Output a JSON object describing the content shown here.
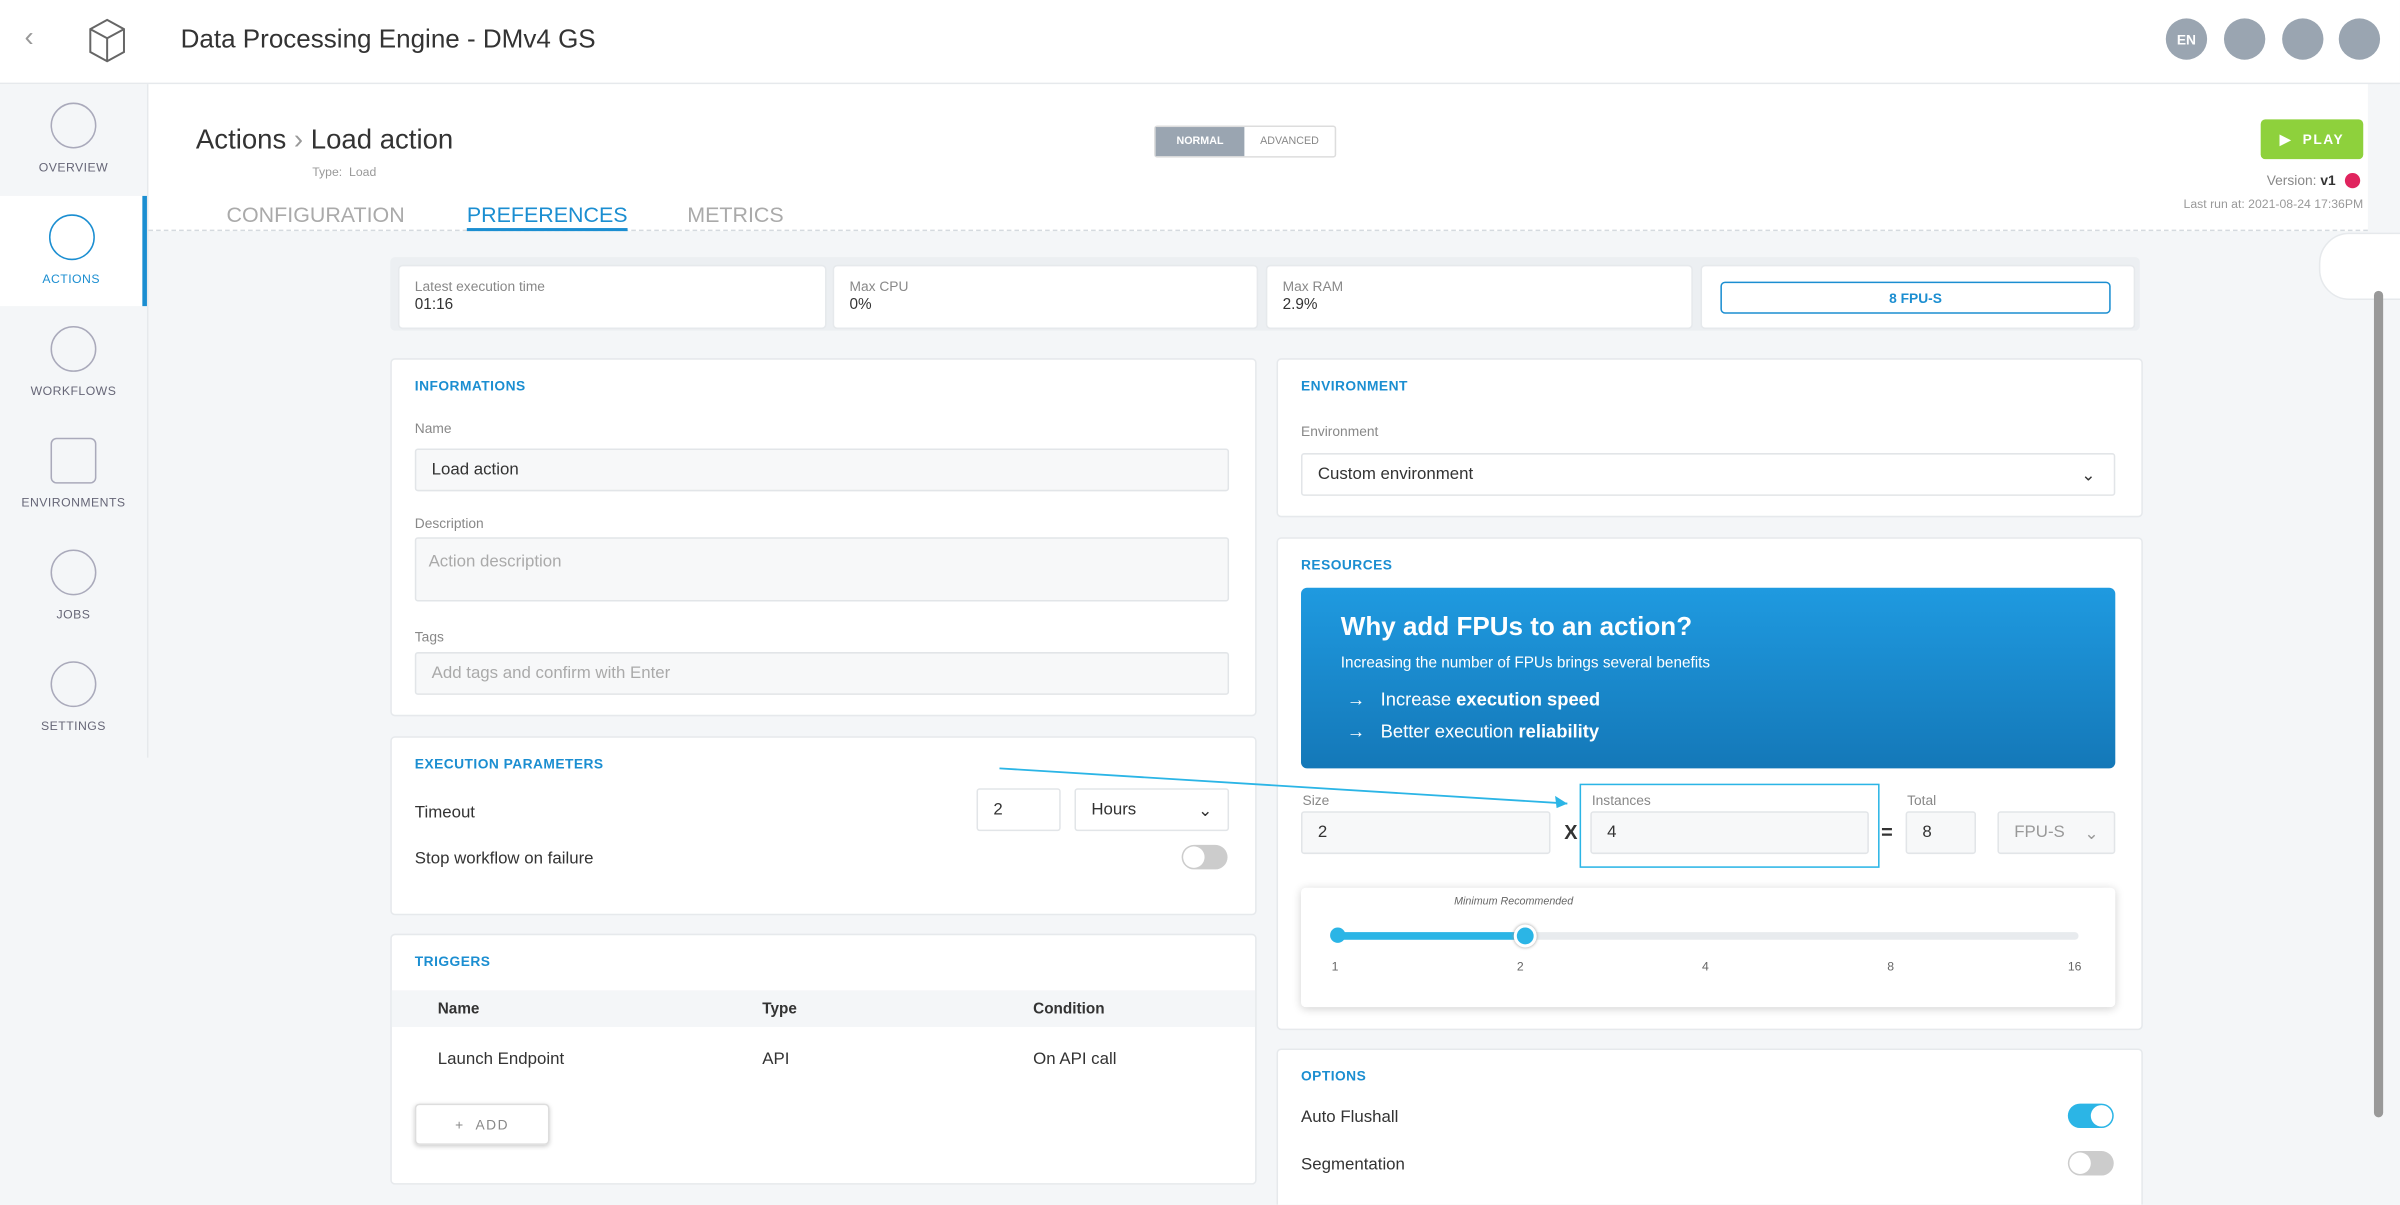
{
  "header": {
    "title": "Data Processing Engine - DMv4 GS",
    "language": "EN"
  },
  "sidebar": {
    "items": [
      "OVERVIEW",
      "ACTIONS",
      "WORKFLOWS",
      "ENVIRONMENTS",
      "JOBS",
      "SETTINGS"
    ]
  },
  "page": {
    "breadcrumb": [
      "Actions",
      "Load action"
    ],
    "type_label": "Type:",
    "type": "Load",
    "modes": [
      "NORMAL",
      "ADVANCED"
    ],
    "play": "PLAY",
    "version_label": "Version:",
    "version": "v1",
    "last_run": "Last run at: 2021-08-24 17:36PM",
    "tabs": [
      "CONFIGURATION",
      "PREFERENCES",
      "METRICS"
    ]
  },
  "stats": [
    {
      "label": "Latest execution time",
      "value": "01:16"
    },
    {
      "label": "Max CPU",
      "value": "0%"
    },
    {
      "label": "Max RAM",
      "value": "2.9%"
    }
  ],
  "fpu_button": "8 FPU-S",
  "informations": {
    "title": "INFORMATIONS",
    "name_label": "Name",
    "name": "Load action",
    "description_label": "Description",
    "description_placeholder": "Action description",
    "tags_label": "Tags",
    "tags_placeholder": "Add tags and confirm with Enter"
  },
  "execution": {
    "title": "EXECUTION PARAMETERS",
    "timeout_label": "Timeout",
    "timeout": "2",
    "timeout_unit": "Hours",
    "stop_label": "Stop workflow on failure"
  },
  "triggers": {
    "title": "TRIGGERS",
    "columns": [
      "Name",
      "Type",
      "Condition"
    ],
    "rows": [
      [
        "Launch Endpoint",
        "API",
        "On API call"
      ]
    ],
    "add": "ADD"
  },
  "environment": {
    "title": "ENVIRONMENT",
    "label": "Environment",
    "value": "Custom environment"
  },
  "resources": {
    "title": "RESOURCES",
    "banner_title": "Why add FPUs to an action?",
    "banner_subtitle": "Increasing the number of FPUs brings several benefits",
    "benefits": [
      {
        "text": "Increase ",
        "bold": "execution speed"
      },
      {
        "text": "Better execution ",
        "bold": "reliability"
      }
    ],
    "size_label": "Size",
    "size": "2",
    "times": "X",
    "instances_label": "Instances",
    "instances": "4",
    "equals": "=",
    "total_label": "Total",
    "total": "8",
    "unit": "FPU-S",
    "slider_label": "Minimum Recommended",
    "slider_ticks": [
      "1",
      "2",
      "4",
      "8",
      "16"
    ]
  },
  "options": {
    "title": "OPTIONS",
    "items": [
      "Auto Flushall",
      "Segmentation"
    ]
  }
}
